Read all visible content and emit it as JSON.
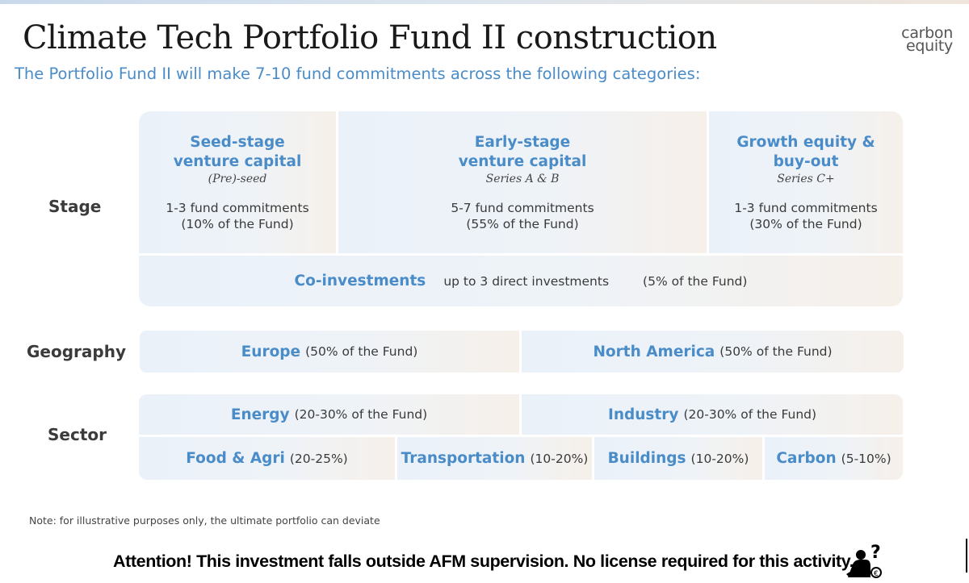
{
  "title": "Climate Tech Portfolio Fund II construction",
  "logo": {
    "line1": "carbon",
    "line2": "equity"
  },
  "subtitle": "The Portfolio Fund II will make 7-10 fund commitments across the following categories:",
  "stage": {
    "label": "Stage",
    "columns": [
      {
        "title1": "Seed-stage",
        "title2": "venture capital",
        "series": "(Pre)-seed",
        "commit": "1-3 fund commitments",
        "share": "(10% of the Fund)"
      },
      {
        "title1": "Early-stage",
        "title2": "venture capital",
        "series": "Series A & B",
        "commit": "5-7 fund commitments",
        "share": "(55% of the Fund)"
      },
      {
        "title1": "Growth equity &",
        "title2": "buy-out",
        "series": "Series C+",
        "commit": "1-3 fund commitments",
        "share": "(30% of the Fund)"
      }
    ],
    "coinvest": {
      "title": "Co-investments",
      "desc": "up to 3 direct investments",
      "share": "(5% of the Fund)"
    }
  },
  "geography": {
    "label": "Geography",
    "items": [
      {
        "name": "Europe",
        "share": "(50% of the Fund)"
      },
      {
        "name": "North America",
        "share": "(50% of the Fund)"
      }
    ]
  },
  "sector": {
    "label": "Sector",
    "row1": [
      {
        "name": "Energy",
        "share": "(20-30% of the Fund)"
      },
      {
        "name": "Industry",
        "share": "(20-30% of the Fund)"
      }
    ],
    "row2": [
      {
        "name": "Food & Agri",
        "share": "(20-25%)"
      },
      {
        "name": "Transportation",
        "share": "(10-20%)"
      },
      {
        "name": "Buildings",
        "share": "(10-20%)"
      },
      {
        "name": "Carbon",
        "share": "(5-10%)"
      }
    ]
  },
  "note": "Note: for illustrative purposes only, the ultimate portfolio can deviate",
  "warning": "Attention! This investment falls outside AFM supervision. No license required for this activity.",
  "icons": {
    "afm": "afm-warning-icon"
  }
}
